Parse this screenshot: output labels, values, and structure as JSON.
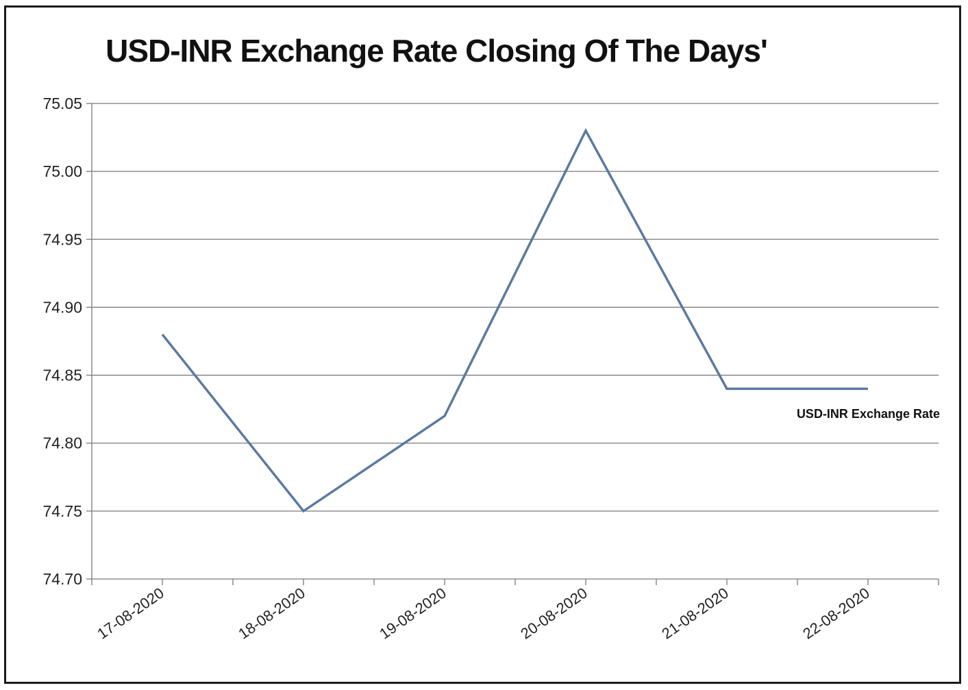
{
  "chart_data": {
    "type": "line",
    "title": "USD-INR Exchange Rate Closing Of The Days'",
    "categories": [
      "17-08-2020",
      "18-08-2020",
      "19-08-2020",
      "20-08-2020",
      "21-08-2020",
      "22-08-2020"
    ],
    "series": [
      {
        "name": "USD-INR Exchange Rate",
        "values": [
          74.88,
          74.75,
          74.82,
          75.03,
          74.84,
          74.84
        ],
        "color": "#5a7aa0"
      }
    ],
    "ylim": [
      74.7,
      75.05
    ],
    "yticks": [
      "74.70",
      "74.75",
      "74.80",
      "74.85",
      "74.90",
      "74.95",
      "75.00",
      "75.05"
    ],
    "grid": true,
    "legend": "right"
  }
}
